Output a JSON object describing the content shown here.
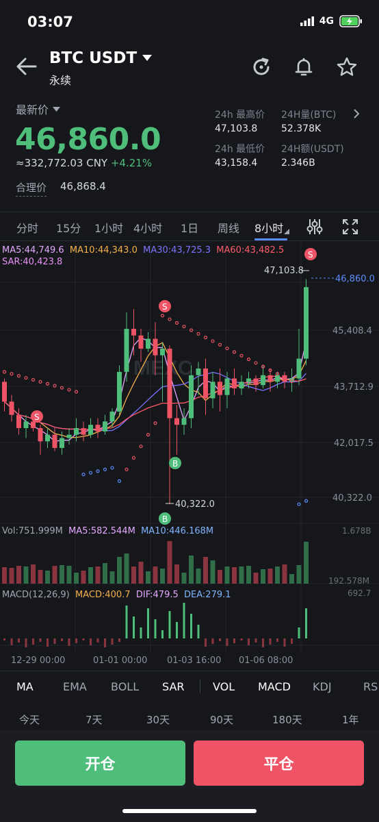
{
  "status_bar": {
    "time": "03:07",
    "network": "4G"
  },
  "header": {
    "pair": "BTC USDT",
    "subtitle": "永续"
  },
  "price": {
    "label": "最新价",
    "last": "46,860.0",
    "cny": "≈332,772.03 CNY",
    "change": "+4.21%",
    "fair_label": "合理价",
    "fair_value": "46,868.4"
  },
  "stats": {
    "high_label": "24h 最高价",
    "high_value": "47,103.8",
    "vol_label": "24H量(BTC)",
    "vol_value": "52.378K",
    "low_label": "24h 最低价",
    "low_value": "43,158.4",
    "amt_label": "24H额(USDT)",
    "amt_value": "2.346B"
  },
  "intervals": [
    "分时",
    "15分",
    "1小时",
    "4小时",
    "1日",
    "周线",
    "8小时"
  ],
  "intervals_active": "8小时",
  "chart_data": {
    "type": "candlestick",
    "ma_legend": {
      "ma5": "MA5:44,749.6",
      "ma10": "MA10:44,343.0",
      "ma30": "MA30:43,725.3",
      "ma60": "MA60:43,482.5",
      "sar": "SAR:40,423.8"
    },
    "y_ticks": [
      "45,408.4",
      "43,712.9",
      "42,017.5",
      "40,322.0"
    ],
    "last_price_tag": "46,860.0",
    "high_marker": "47,103.8",
    "low_marker": "40,322.0",
    "x_ticks": [
      "12-29 00:00",
      "01-01 00:00",
      "01-03 16:00",
      "01-06 08:00"
    ],
    "candles": [
      [
        44.0,
        43.4,
        43.1,
        44.1
      ],
      [
        43.4,
        43.0,
        42.8,
        43.6
      ],
      [
        43.0,
        42.6,
        42.4,
        43.2
      ],
      [
        42.6,
        42.8,
        42.3,
        43.0
      ],
      [
        42.8,
        42.6,
        42.5,
        43.0
      ],
      [
        42.6,
        42.2,
        41.8,
        42.7
      ],
      [
        42.2,
        42.4,
        42.0,
        42.6
      ],
      [
        42.4,
        42.0,
        41.9,
        42.6
      ],
      [
        42.0,
        42.3,
        41.8,
        42.5
      ],
      [
        42.3,
        42.4,
        42.1,
        42.6
      ],
      [
        42.4,
        42.6,
        42.2,
        42.9
      ],
      [
        42.6,
        42.4,
        42.2,
        42.8
      ],
      [
        42.4,
        42.7,
        42.3,
        42.9
      ],
      [
        42.7,
        42.5,
        42.3,
        42.9
      ],
      [
        42.5,
        42.8,
        42.4,
        43.0
      ],
      [
        42.8,
        43.1,
        42.6,
        43.2
      ],
      [
        43.1,
        44.3,
        43.0,
        44.5
      ],
      [
        44.3,
        45.6,
        44.0,
        46.1
      ],
      [
        45.6,
        45.4,
        44.8,
        46.2
      ],
      [
        45.4,
        45.0,
        44.6,
        45.6
      ],
      [
        45.0,
        45.3,
        44.9,
        45.5
      ],
      [
        45.3,
        44.8,
        44.2,
        45.8
      ],
      [
        44.8,
        45.0,
        43.4,
        45.2
      ],
      [
        45.0,
        42.9,
        40.3,
        45.1
      ],
      [
        42.9,
        42.7,
        41.8,
        43.3
      ],
      [
        42.7,
        42.9,
        42.4,
        43.2
      ],
      [
        42.9,
        44.2,
        42.6,
        44.5
      ],
      [
        44.2,
        44.4,
        43.6,
        44.6
      ],
      [
        44.4,
        43.5,
        43.0,
        44.7
      ],
      [
        43.5,
        44.0,
        43.2,
        44.3
      ],
      [
        44.0,
        43.6,
        43.1,
        44.4
      ],
      [
        43.6,
        44.1,
        43.2,
        44.3
      ],
      [
        44.1,
        43.8,
        43.6,
        44.4
      ],
      [
        43.8,
        44.0,
        43.6,
        44.2
      ],
      [
        44.0,
        44.1,
        43.8,
        44.3
      ],
      [
        44.1,
        43.9,
        43.7,
        44.2
      ],
      [
        43.9,
        44.2,
        43.8,
        44.5
      ],
      [
        44.2,
        44.0,
        43.7,
        44.4
      ],
      [
        44.0,
        44.2,
        43.8,
        44.3
      ],
      [
        44.2,
        44.0,
        43.8,
        44.3
      ],
      [
        44.0,
        44.1,
        43.7,
        44.4
      ],
      [
        44.1,
        44.7,
        43.9,
        45.6
      ],
      [
        44.7,
        46.86,
        44.5,
        47.1
      ]
    ],
    "volume_legend": {
      "vol": "Vol:751.999M",
      "ma5": "MA5:582.544M",
      "ma10": "MA10:446.168M"
    },
    "volume_ticks": [
      "1.678B",
      "192.578M"
    ],
    "macd_legend": {
      "label": "MACD(12,26,9)",
      "macd": "MACD:400.7",
      "dif": "DIF:479.5",
      "dea": "DEA:279.1"
    },
    "macd_tick": "692.7",
    "watermark": "MEXC"
  },
  "indicator_tabs": [
    "MA",
    "EMA",
    "BOLL",
    "SAR",
    "VOL",
    "MACD",
    "KDJ",
    "RS"
  ],
  "range_tabs": [
    "今天",
    "7天",
    "30天",
    "90天",
    "180天",
    "1年"
  ],
  "buttons": {
    "open": "开仓",
    "close": "平仓"
  },
  "colors": {
    "up": "#4fbe7b",
    "down": "#ef5466",
    "ma5": "#e6a8ff",
    "ma10": "#f5b04a",
    "ma30": "#7a73ff",
    "ma60": "#ff5a6a",
    "sar": "#e890f5"
  }
}
